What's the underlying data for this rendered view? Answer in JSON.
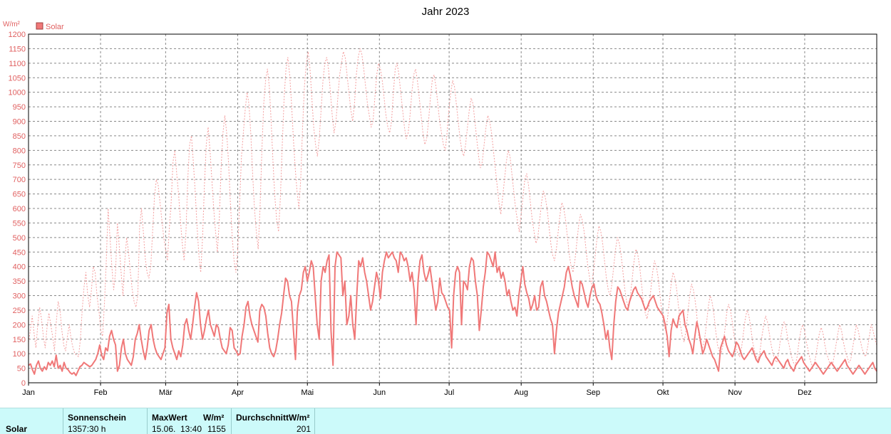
{
  "chart_data": {
    "type": "line",
    "title": "Jahr 2023",
    "ylabel": "W/m²",
    "ylim": [
      0,
      1200
    ],
    "ytick_step": 50,
    "grid": true,
    "legend_position": "top-left",
    "months": [
      "Jan",
      "Feb",
      "Mär",
      "Apr",
      "Mai",
      "Jun",
      "Jul",
      "Aug",
      "Sep",
      "Okt",
      "Nov",
      "Dez"
    ],
    "series": [
      {
        "name": "Solar",
        "style": "solid",
        "color": "#f07878",
        "values": [
          60,
          65,
          45,
          30,
          60,
          75,
          50,
          40,
          55,
          45,
          70,
          60,
          75,
          55,
          95,
          50,
          60,
          40,
          70,
          50,
          45,
          35,
          30,
          35,
          25,
          40,
          55,
          60,
          70,
          65,
          60,
          55,
          60,
          70,
          80,
          100,
          130,
          95,
          80,
          120,
          110,
          160,
          180,
          150,
          130,
          40,
          60,
          120,
          150,
          100,
          80,
          70,
          60,
          90,
          150,
          170,
          200,
          150,
          110,
          80,
          120,
          180,
          200,
          150,
          120,
          100,
          90,
          80,
          100,
          120,
          240,
          270,
          150,
          120,
          100,
          80,
          110,
          90,
          130,
          200,
          220,
          180,
          150,
          200,
          260,
          310,
          280,
          200,
          150,
          180,
          220,
          250,
          200,
          180,
          160,
          200,
          190,
          150,
          120,
          110,
          100,
          130,
          190,
          180,
          120,
          110,
          95,
          100,
          160,
          200,
          260,
          280,
          230,
          200,
          180,
          160,
          140,
          250,
          270,
          260,
          230,
          170,
          120,
          100,
          90,
          110,
          150,
          200,
          240,
          300,
          360,
          350,
          300,
          280,
          180,
          80,
          250,
          300,
          320,
          380,
          400,
          350,
          380,
          420,
          400,
          300,
          200,
          150,
          350,
          400,
          380,
          420,
          440,
          180,
          60,
          400,
          450,
          440,
          430,
          300,
          350,
          200,
          230,
          300,
          200,
          150,
          300,
          420,
          400,
          430,
          380,
          350,
          300,
          250,
          280,
          330,
          380,
          350,
          290,
          380,
          420,
          450,
          430,
          440,
          450,
          430,
          420,
          380,
          450,
          440,
          420,
          430,
          400,
          350,
          380,
          320,
          200,
          350,
          420,
          440,
          380,
          350,
          370,
          400,
          350,
          300,
          250,
          280,
          360,
          310,
          300,
          280,
          260,
          250,
          120,
          300,
          380,
          400,
          380,
          200,
          350,
          340,
          320,
          400,
          430,
          420,
          350,
          300,
          180,
          250,
          330,
          380,
          450,
          440,
          420,
          400,
          450,
          380,
          400,
          360,
          380,
          350,
          300,
          320,
          280,
          250,
          260,
          230,
          300,
          350,
          400,
          340,
          310,
          290,
          250,
          270,
          300,
          250,
          260,
          330,
          350,
          300,
          280,
          250,
          220,
          200,
          100,
          180,
          240,
          270,
          300,
          330,
          380,
          400,
          370,
          330,
          300,
          280,
          260,
          350,
          340,
          310,
          280,
          260,
          300,
          330,
          340,
          300,
          280,
          270,
          240,
          200,
          150,
          180,
          120,
          80,
          200,
          280,
          330,
          320,
          300,
          280,
          260,
          250,
          280,
          300,
          320,
          330,
          310,
          300,
          290,
          270,
          250,
          260,
          280,
          290,
          300,
          280,
          260,
          250,
          240,
          230,
          200,
          160,
          90,
          180,
          220,
          200,
          190,
          230,
          240,
          250,
          200,
          180,
          150,
          130,
          100,
          160,
          210,
          180,
          140,
          100,
          120,
          150,
          130,
          110,
          90,
          80,
          60,
          40,
          120,
          140,
          160,
          130,
          110,
          100,
          90,
          110,
          140,
          130,
          110,
          90,
          80,
          90,
          100,
          110,
          120,
          100,
          80,
          70,
          90,
          100,
          110,
          90,
          80,
          70,
          60,
          80,
          90,
          80,
          70,
          60,
          50,
          70,
          80,
          60,
          50,
          40,
          60,
          70,
          80,
          90,
          70,
          60,
          50,
          40,
          50,
          60,
          70,
          60,
          50,
          40,
          30,
          40,
          50,
          60,
          70,
          60,
          50,
          40,
          50,
          60,
          70,
          80,
          60,
          50,
          40,
          30,
          40,
          50,
          60,
          50,
          40,
          30,
          40,
          50,
          60,
          70,
          50,
          40
        ]
      },
      {
        "name": "",
        "style": "dashed",
        "color": "#f4a0a0",
        "values": [
          140,
          180,
          230,
          170,
          120,
          200,
          260,
          220,
          160,
          120,
          190,
          240,
          200,
          160,
          110,
          210,
          280,
          250,
          180,
          130,
          110,
          160,
          200,
          150,
          120,
          100,
          95,
          90,
          150,
          250,
          330,
          380,
          300,
          260,
          320,
          400,
          380,
          300,
          250,
          180,
          160,
          270,
          420,
          600,
          500,
          400,
          320,
          380,
          550,
          470,
          380,
          300,
          420,
          500,
          450,
          380,
          320,
          280,
          260,
          300,
          540,
          600,
          520,
          430,
          380,
          360,
          400,
          520,
          640,
          700,
          680,
          620,
          560,
          500,
          460,
          420,
          530,
          620,
          760,
          800,
          720,
          650,
          560,
          480,
          420,
          520,
          700,
          820,
          850,
          760,
          660,
          540,
          440,
          380,
          500,
          680,
          820,
          880,
          800,
          700,
          600,
          520,
          450,
          560,
          740,
          860,
          920,
          860,
          760,
          620,
          500,
          420,
          380,
          460,
          620,
          780,
          860,
          940,
          1000,
          960,
          860,
          720,
          600,
          520,
          460,
          600,
          800,
          960,
          1040,
          1080,
          1020,
          900,
          760,
          640,
          560,
          520,
          640,
          820,
          980,
          1080,
          1120,
          1060,
          960,
          840,
          740,
          660,
          600,
          700,
          880,
          1020,
          1100,
          1140,
          1080,
          980,
          880,
          820,
          780,
          840,
          940,
          1040,
          1100,
          1120,
          1080,
          1000,
          920,
          860,
          900,
          980,
          1060,
          1100,
          1140,
          1120,
          1060,
          1000,
          940,
          900,
          960,
          1060,
          1120,
          1150,
          1130,
          1080,
          1020,
          960,
          920,
          880,
          900,
          980,
          1060,
          1100,
          1080,
          1040,
          980,
          920,
          880,
          860,
          900,
          1000,
          1080,
          1100,
          1060,
          1000,
          940,
          880,
          840,
          860,
          920,
          1000,
          1060,
          1080,
          1040,
          980,
          920,
          860,
          820,
          840,
          900,
          980,
          1040,
          1060,
          1020,
          960,
          900,
          860,
          820,
          800,
          860,
          940,
          1000,
          1040,
          1020,
          960,
          900,
          840,
          800,
          780,
          820,
          880,
          940,
          980,
          960,
          900,
          840,
          780,
          740,
          760,
          820,
          880,
          920,
          900,
          860,
          800,
          740,
          680,
          620,
          580,
          640,
          700,
          760,
          800,
          780,
          720,
          660,
          600,
          560,
          520,
          580,
          640,
          700,
          720,
          680,
          620,
          560,
          520,
          480,
          500,
          560,
          620,
          660,
          640,
          600,
          540,
          480,
          440,
          420,
          460,
          520,
          580,
          620,
          600,
          560,
          500,
          440,
          400,
          380,
          420,
          480,
          540,
          580,
          560,
          520,
          460,
          400,
          360,
          340,
          380,
          440,
          500,
          540,
          520,
          480,
          420,
          360,
          320,
          300,
          340,
          400,
          460,
          500,
          480,
          440,
          380,
          320,
          280,
          260,
          300,
          360,
          420,
          460,
          440,
          400,
          340,
          280,
          240,
          220,
          260,
          320,
          380,
          420,
          400,
          360,
          300,
          240,
          200,
          180,
          220,
          280,
          340,
          380,
          360,
          320,
          260,
          200,
          160,
          140,
          180,
          240,
          300,
          340,
          320,
          280,
          220,
          160,
          130,
          120,
          150,
          200,
          260,
          300,
          280,
          240,
          180,
          130,
          110,
          100,
          130,
          180,
          240,
          270,
          250,
          210,
          160,
          120,
          100,
          90,
          120,
          170,
          220,
          250,
          230,
          190,
          140,
          110,
          90,
          80,
          110,
          160,
          200,
          230,
          210,
          170,
          130,
          100,
          80,
          70,
          100,
          150,
          190,
          210,
          190,
          150,
          120,
          90,
          70,
          60,
          90,
          140,
          180,
          200,
          180,
          140,
          110,
          80,
          60,
          60,
          90,
          130,
          170,
          190,
          170,
          130,
          100,
          80,
          60,
          60,
          90,
          130,
          170,
          200,
          180,
          140,
          110,
          90,
          70,
          80,
          120,
          160,
          200,
          180,
          150,
          120,
          100,
          90,
          120,
          160,
          200,
          180,
          150,
          130
        ]
      }
    ]
  },
  "legend": {
    "label": "Solar"
  },
  "footer": {
    "row_label": "Solar",
    "sonnenschein_label": "Sonnenschein",
    "sonnenschein_value": "1357:30 h",
    "maxwert_label": "MaxWert",
    "maxwert_unit": "W/m²",
    "maxwert_date": "15.06.",
    "maxwert_time": "13:40",
    "maxwert_value": "1155",
    "durchschnitt_label": "Durchschnitt",
    "durchschnitt_unit": "W/m²",
    "durchschnitt_value": "201"
  }
}
